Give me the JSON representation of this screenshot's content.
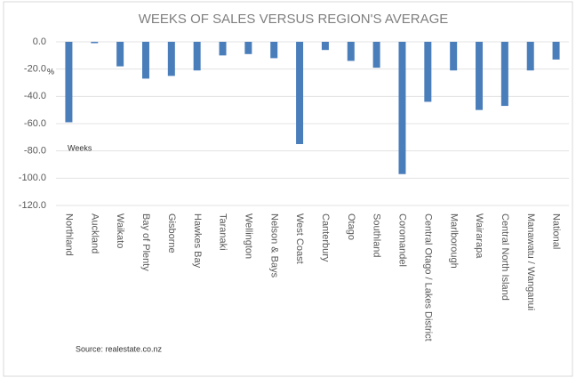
{
  "chart_data": {
    "type": "bar",
    "title": "WEEKS OF SALES VERSUS REGION'S AVERAGE",
    "categories": [
      "Northland",
      "Auckland",
      "Waikato",
      "Bay of Plenty",
      "Gisborne",
      "Hawkes Bay",
      "Taranaki",
      "Wellington",
      "Nelson & Bays",
      "West Coast",
      "Canterbury",
      "Otago",
      "Southland",
      "Coromandel",
      "Central Otago / Lakes District",
      "Marlborough",
      "Wairarapa",
      "Central North Island",
      "Manawatu / Wanganui",
      "National"
    ],
    "values": [
      -59,
      -1,
      -18,
      -27,
      -25,
      -21,
      -10,
      -9,
      -12,
      -75,
      -6,
      -14,
      -19,
      -97,
      -44,
      -21,
      -50,
      -47,
      -21,
      -13
    ],
    "color": "#4a7ebb",
    "ylim": [
      -120,
      0
    ],
    "yticks": [
      {
        "value": 0,
        "label": "0.0"
      },
      {
        "value": -20,
        "label": "-20.0"
      },
      {
        "value": -40,
        "label": "-40.0"
      },
      {
        "value": -60,
        "label": "-60.0"
      },
      {
        "value": -80,
        "label": "-80.0"
      },
      {
        "value": -100,
        "label": "-100.0"
      },
      {
        "value": -120,
        "label": "-120.0"
      }
    ],
    "grid": true,
    "annotations": [
      "%",
      "Weeks"
    ],
    "source": "Source: realestate.co.nz"
  }
}
